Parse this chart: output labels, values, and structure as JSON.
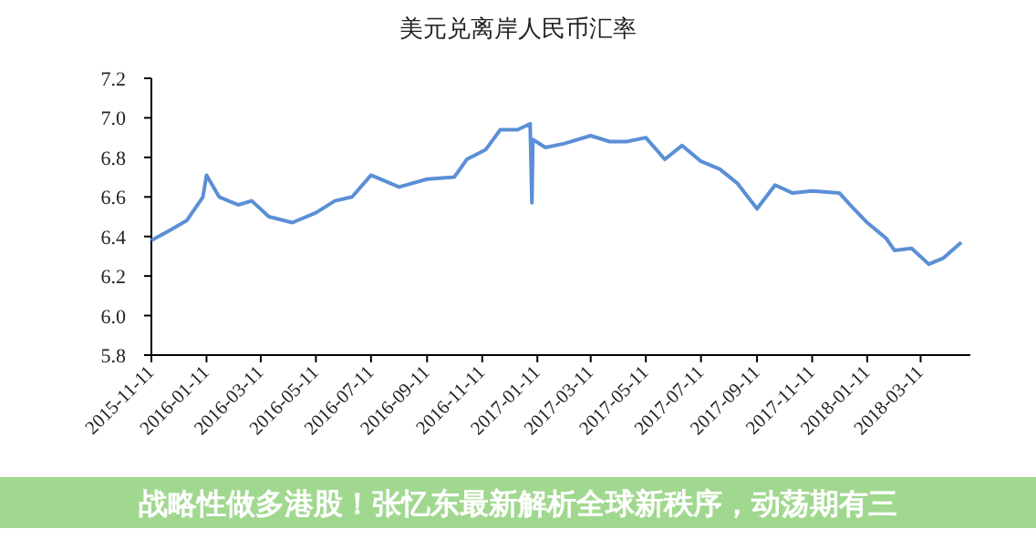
{
  "chart_data": {
    "type": "line",
    "title": "美元兑离岸人民币汇率",
    "annotations": [
      "战略性做多港股！张忆东最新解析全球新秩序，动荡期有三"
    ],
    "x": [
      "2015-11-11",
      "2015-12-01",
      "2015-12-20",
      "2016-01-07",
      "2016-01-11",
      "2016-01-25",
      "2016-02-15",
      "2016-03-01",
      "2016-03-20",
      "2016-04-15",
      "2016-05-11",
      "2016-06-01",
      "2016-06-20",
      "2016-07-11",
      "2016-08-11",
      "2016-09-11",
      "2016-10-11",
      "2016-10-25",
      "2016-11-15",
      "2016-12-01",
      "2016-12-20",
      "2017-01-03",
      "2017-01-05",
      "2017-01-06",
      "2017-01-20",
      "2017-02-10",
      "2017-03-11",
      "2017-04-01",
      "2017-04-20",
      "2017-05-11",
      "2017-06-01",
      "2017-06-20",
      "2017-07-11",
      "2017-08-01",
      "2017-08-20",
      "2017-09-11",
      "2017-10-01",
      "2017-10-20",
      "2017-11-11",
      "2017-12-11",
      "2017-12-25",
      "2018-01-11",
      "2018-02-01",
      "2018-02-10",
      "2018-03-01",
      "2018-03-20",
      "2018-04-05",
      "2018-04-25"
    ],
    "series": [
      {
        "color": "#5b8fd6",
        "values": [
          6.38,
          6.43,
          6.48,
          6.6,
          6.71,
          6.6,
          6.56,
          6.58,
          6.5,
          6.47,
          6.52,
          6.58,
          6.6,
          6.71,
          6.65,
          6.69,
          6.7,
          6.79,
          6.84,
          6.94,
          6.94,
          6.97,
          6.57,
          6.89,
          6.85,
          6.87,
          6.91,
          6.88,
          6.88,
          6.9,
          6.79,
          6.86,
          6.78,
          6.74,
          6.67,
          6.54,
          6.66,
          6.62,
          6.63,
          6.62,
          6.55,
          6.47,
          6.39,
          6.33,
          6.34,
          6.26,
          6.29,
          6.37
        ]
      }
    ],
    "xlim": [
      "2015-11-11",
      "2018-05-05"
    ],
    "xticks": [
      "2015-11-11",
      "2016-01-11",
      "2016-03-11",
      "2016-05-11",
      "2016-07-11",
      "2016-09-11",
      "2016-11-11",
      "2017-01-11",
      "2017-03-11",
      "2017-05-11",
      "2017-07-11",
      "2017-09-11",
      "2017-11-11",
      "2018-01-11",
      "2018-03-11"
    ],
    "ylim": [
      5.8,
      7.2
    ],
    "yticks": [
      {
        "value": 5.8,
        "label": "5.8"
      },
      {
        "value": 6.0,
        "label": "6.0"
      },
      {
        "value": 6.2,
        "label": "6.2"
      },
      {
        "value": 6.4,
        "label": "6.4"
      },
      {
        "value": 6.6,
        "label": "6.6"
      },
      {
        "value": 6.8,
        "label": "6.8"
      },
      {
        "value": 7.0,
        "label": "7.0"
      },
      {
        "value": 7.2,
        "label": "7.2"
      }
    ],
    "grid": false,
    "marker": "none",
    "line_style": "solid"
  }
}
